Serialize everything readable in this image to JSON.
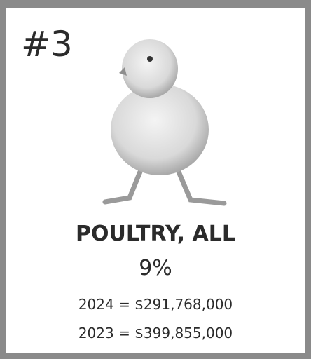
{
  "card": {
    "rank": "#3",
    "title": "POULTRY, ALL",
    "share": "9%",
    "lines": [
      "2024 = $291,768,000",
      "2023 = $399,855,000"
    ]
  }
}
